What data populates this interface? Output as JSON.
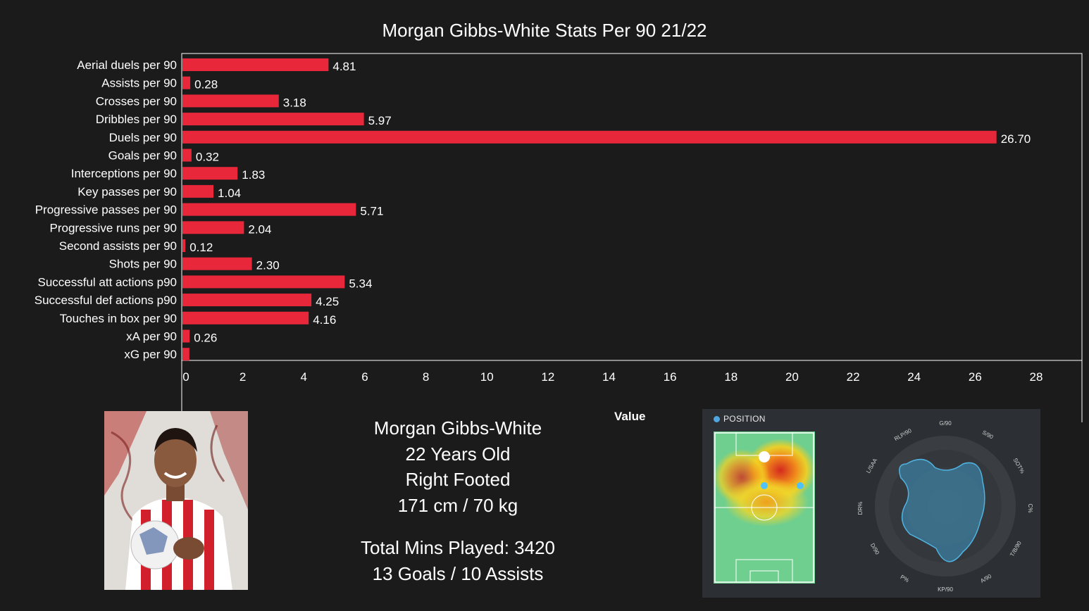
{
  "chart_data": {
    "type": "bar",
    "orientation": "horizontal",
    "title": "Morgan Gibbs-White Stats Per 90 21/22",
    "categories": [
      "Aerial duels per 90",
      "Assists per 90",
      "Crosses per 90",
      "Dribbles per 90",
      "Duels per 90",
      "Goals per 90",
      "Interceptions per 90",
      "Key passes per 90",
      "Progressive passes per 90",
      "Progressive runs per 90",
      "Second assists per 90",
      "Shots per 90",
      "Successful att actions p90",
      "Successful def actions p90",
      "Touches in box per 90",
      "xA per 90",
      "xG per 90"
    ],
    "values": [
      4.81,
      0.28,
      3.18,
      5.97,
      26.7,
      0.32,
      1.83,
      1.04,
      5.71,
      2.04,
      0.12,
      2.3,
      5.34,
      4.25,
      4.16,
      0.26,
      0.25
    ],
    "value_labels": [
      "4.81",
      "0.28",
      "3.18",
      "5.97",
      "26.70",
      "0.32",
      "1.83",
      "1.04",
      "5.71",
      "2.04",
      "0.12",
      "2.30",
      "5.34",
      "4.25",
      "4.16",
      "0.26",
      ""
    ],
    "xlim": [
      0,
      29.5
    ],
    "xticks": [
      0,
      2,
      4,
      6,
      8,
      10,
      12,
      14,
      16,
      18,
      20,
      22,
      24,
      26,
      28
    ],
    "xticks_labels": [
      "0",
      "2",
      "4",
      "6",
      "8",
      "10",
      "12",
      "14",
      "16",
      "18",
      "20",
      "22",
      "24",
      "26",
      "28"
    ],
    "xlabel": "Value",
    "ylabel": "",
    "bar_color": "#e8273a",
    "grid": false
  },
  "player": {
    "name": "Morgan Gibbs-White",
    "age": "22 Years Old",
    "foot": "Right Footed",
    "build": "171 cm / 70 kg",
    "minutes": "Total Mins Played: 3420",
    "goals_assists": "13 Goals / 10 Assists"
  },
  "position_panel": {
    "title": "POSITION",
    "radar_labels": [
      "G/90",
      "S/90",
      "SOT%",
      "C%",
      "T/B/90",
      "A/90",
      "KP/90",
      "P%",
      "D/90",
      "DR%",
      "L/SAA",
      "RLP/90"
    ]
  },
  "colors": {
    "background": "#1b1b1b",
    "bar": "#e8273a",
    "panel": "#2c2f33",
    "radar": "#3d7fa0"
  }
}
